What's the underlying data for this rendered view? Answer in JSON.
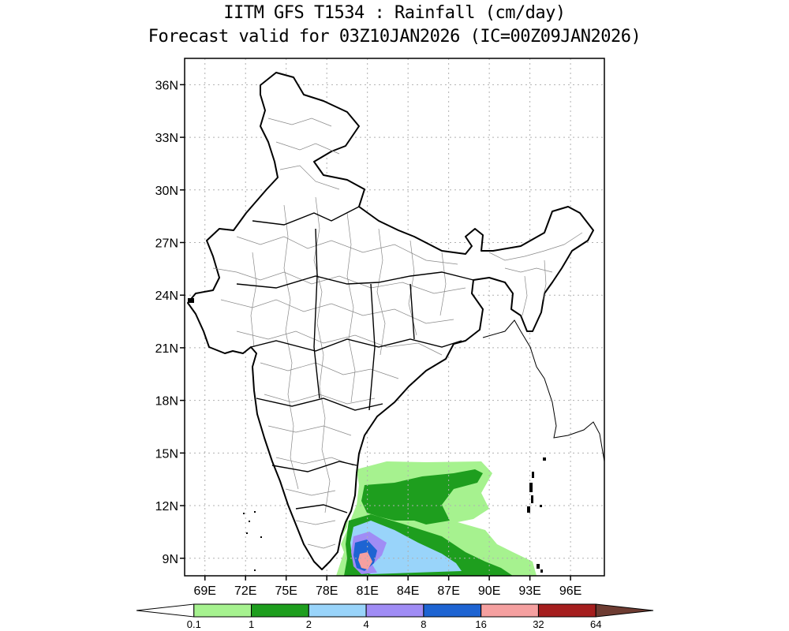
{
  "title": {
    "line1": "IITM GFS T1534 : Rainfall (cm/day)",
    "line2": "Forecast valid for 03Z10JAN2026 (IC=00Z09JAN2026)"
  },
  "map": {
    "lon_range": [
      67.5,
      98.5
    ],
    "lat_range": [
      8.0,
      37.5
    ],
    "lat_ticks": [
      {
        "value": 9,
        "label": "9N"
      },
      {
        "value": 12,
        "label": "12N"
      },
      {
        "value": 15,
        "label": "15N"
      },
      {
        "value": 18,
        "label": "18N"
      },
      {
        "value": 21,
        "label": "21N"
      },
      {
        "value": 24,
        "label": "24N"
      },
      {
        "value": 27,
        "label": "27N"
      },
      {
        "value": 30,
        "label": "30N"
      },
      {
        "value": 33,
        "label": "33N"
      },
      {
        "value": 36,
        "label": "36N"
      }
    ],
    "lon_ticks": [
      {
        "value": 69,
        "label": "69E"
      },
      {
        "value": 72,
        "label": "72E"
      },
      {
        "value": 75,
        "label": "75E"
      },
      {
        "value": 78,
        "label": "78E"
      },
      {
        "value": 81,
        "label": "81E"
      },
      {
        "value": 84,
        "label": "84E"
      },
      {
        "value": 87,
        "label": "87E"
      },
      {
        "value": 90,
        "label": "90E"
      },
      {
        "value": 93,
        "label": "93E"
      },
      {
        "value": 96,
        "label": "96E"
      }
    ],
    "grid": true
  },
  "colorbar": {
    "levels": [
      "0.1",
      "1",
      "2",
      "4",
      "8",
      "16",
      "32",
      "64"
    ],
    "colors": [
      "#ffffff",
      "#a6f28f",
      "#1e9e1e",
      "#99d4fa",
      "#a08cf5",
      "#1e64d2",
      "#f5a0a0",
      "#a51e1e",
      "#6e3c32"
    ]
  }
}
